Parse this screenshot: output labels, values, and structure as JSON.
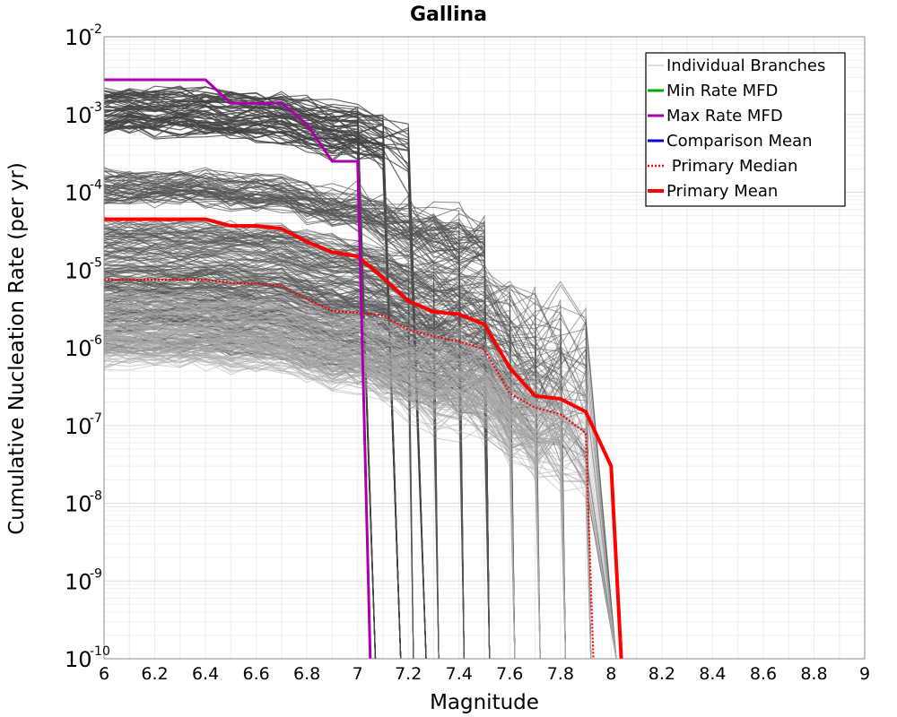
{
  "chart_data": {
    "type": "line",
    "title": "Gallina",
    "xlabel": "Magnitude",
    "ylabel": "Cumulative Nucleation Rate (per yr)",
    "xlim": [
      6,
      9
    ],
    "ylim": [
      1e-10,
      0.01
    ],
    "yscale": "log",
    "grid": true,
    "legend_position": "top-right",
    "x_ticks": [
      "6",
      "6.2",
      "6.4",
      "6.6",
      "6.8",
      "7",
      "7.2",
      "7.4",
      "7.6",
      "7.8",
      "8",
      "8.2",
      "8.4",
      "8.6",
      "8.8",
      "9"
    ],
    "y_ticks": [
      {
        "base": "10",
        "exp": "-10"
      },
      {
        "base": "10",
        "exp": "-9"
      },
      {
        "base": "10",
        "exp": "-8"
      },
      {
        "base": "10",
        "exp": "-7"
      },
      {
        "base": "10",
        "exp": "-6"
      },
      {
        "base": "10",
        "exp": "-5"
      },
      {
        "base": "10",
        "exp": "-4"
      },
      {
        "base": "10",
        "exp": "-3"
      },
      {
        "base": "10",
        "exp": "-2"
      }
    ],
    "legend": [
      {
        "name": "Individual Branches",
        "color": "#bbbbbb",
        "style": "thin"
      },
      {
        "name": "Min Rate MFD",
        "color": "#00aa00",
        "style": "solid"
      },
      {
        "name": "Max Rate MFD",
        "color": "#aa00aa",
        "style": "solid"
      },
      {
        "name": "Comparison Mean",
        "color": "#0000cc",
        "style": "solid"
      },
      {
        "name": " Primary Median",
        "color": "#ff0000",
        "style": "dotted"
      },
      {
        "name": "Primary Mean",
        "color": "#ff0000",
        "style": "thick"
      }
    ],
    "series": [
      {
        "name": "Primary Mean",
        "color": "#ff0000",
        "x": [
          6.0,
          6.1,
          6.2,
          6.3,
          6.4,
          6.5,
          6.6,
          6.7,
          6.8,
          6.9,
          7.0,
          7.1,
          7.2,
          7.3,
          7.4,
          7.5,
          7.6,
          7.7,
          7.8,
          7.9,
          8.0,
          8.04
        ],
        "y": [
          4.5e-05,
          4.5e-05,
          4.5e-05,
          4.5e-05,
          4.5e-05,
          3.7e-05,
          3.7e-05,
          3.4e-05,
          2.3e-05,
          1.7e-05,
          1.5e-05,
          8e-06,
          4e-06,
          2.9e-06,
          2.7e-06,
          2e-06,
          5.5e-07,
          2.4e-07,
          2.2e-07,
          1.5e-07,
          3e-08,
          1e-10
        ]
      },
      {
        "name": "Primary Median",
        "color": "#ff0000",
        "x": [
          6.0,
          6.1,
          6.2,
          6.3,
          6.4,
          6.5,
          6.6,
          6.7,
          6.8,
          6.9,
          7.0,
          7.1,
          7.2,
          7.3,
          7.4,
          7.5,
          7.6,
          7.7,
          7.8,
          7.9,
          7.93
        ],
        "y": [
          7.5e-06,
          7.5e-06,
          7.5e-06,
          7.5e-06,
          7.5e-06,
          6.8e-06,
          6.7e-06,
          6.3e-06,
          4.2e-06,
          3e-06,
          2.8e-06,
          2.6e-06,
          1.7e-06,
          1.4e-06,
          1.2e-06,
          9.5e-07,
          2.6e-07,
          1.7e-07,
          1.4e-07,
          8e-08,
          1e-10
        ]
      },
      {
        "name": "Max Rate MFD",
        "color": "#aa00aa",
        "x": [
          6.0,
          6.1,
          6.2,
          6.3,
          6.4,
          6.5,
          6.6,
          6.7,
          6.8,
          6.9,
          7.0,
          7.05
        ],
        "y": [
          0.0028,
          0.0028,
          0.0028,
          0.0028,
          0.0028,
          0.0014,
          0.0014,
          0.0014,
          0.00075,
          0.00025,
          0.00025,
          1e-10
        ]
      }
    ]
  }
}
